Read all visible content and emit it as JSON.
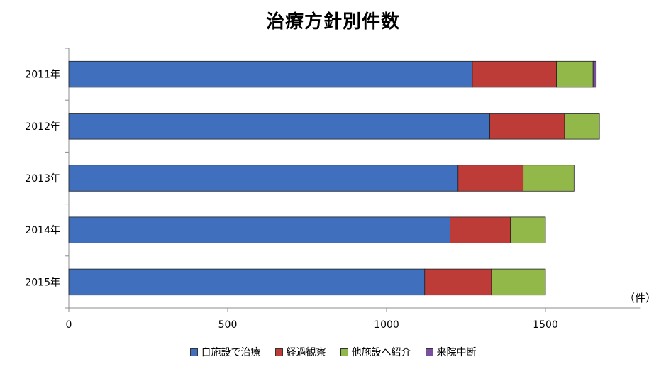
{
  "chart_data": {
    "type": "bar",
    "orientation": "horizontal",
    "stacked": true,
    "title": "治療方針別件数",
    "unit_label": "（件）",
    "categories": [
      "2011年",
      "2012年",
      "2013年",
      "2014年",
      "2015年"
    ],
    "series": [
      {
        "name": "自施設で治療",
        "color": "#3f6fbd",
        "values": [
          1270,
          1325,
          1225,
          1200,
          1120
        ]
      },
      {
        "name": "経過観察",
        "color": "#be3c38",
        "values": [
          265,
          235,
          205,
          190,
          210
        ]
      },
      {
        "name": "他施設へ紹介",
        "color": "#93b84a",
        "values": [
          115,
          110,
          160,
          110,
          170
        ]
      },
      {
        "name": "来院中断",
        "color": "#7a4fa0",
        "values": [
          10,
          0,
          0,
          0,
          0
        ]
      }
    ],
    "xlim": [
      0,
      1800
    ],
    "xticks": [
      0,
      500,
      1000,
      1500
    ],
    "grid": false,
    "legend_position": "bottom"
  }
}
